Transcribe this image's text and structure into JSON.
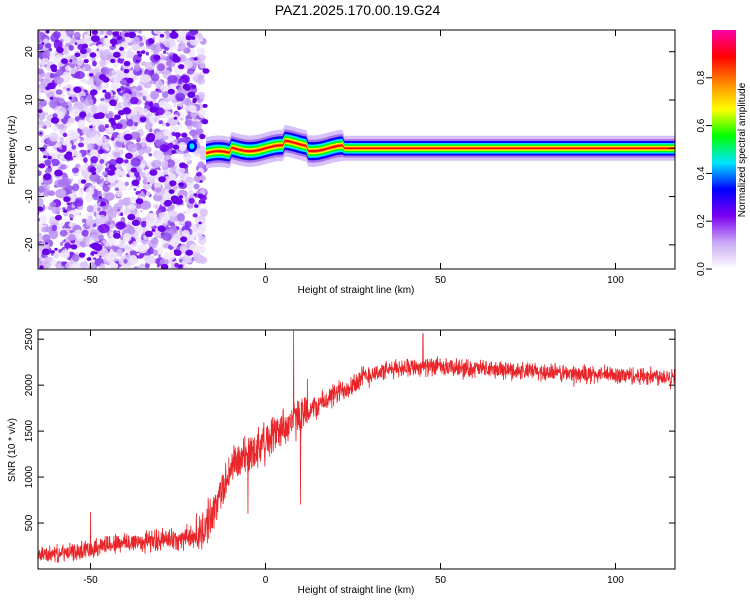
{
  "figure": {
    "title": "PAZ1.2025.170.00.19.G24"
  },
  "chart_data": [
    {
      "type": "heatmap",
      "title": "",
      "xlabel": "Height of straight line (km)",
      "ylabel": "Frequency (Hz)",
      "xlim": [
        -65,
        117
      ],
      "ylim": [
        -25,
        24.5
      ],
      "xticks": [
        -50,
        0,
        50,
        100
      ],
      "yticks": [
        -20,
        -10,
        0,
        10,
        20
      ],
      "noise_region_x": [
        -65,
        -17
      ],
      "tone_start_x": -17,
      "tone_frequency_hz": 0,
      "grid": false,
      "colorbar": {
        "label": "Normalized spectral amplitude",
        "range": [
          0,
          1
        ],
        "ticks": [
          0.0,
          0.2,
          0.4,
          0.6,
          0.8
        ],
        "tick_labels": [
          "0.0",
          "0.2",
          "0.4",
          "0.6",
          "0.8"
        ],
        "colors": [
          "#ffffff",
          "#c9a8f5",
          "#7c00f0",
          "#0000ff",
          "#00e5ff",
          "#00ff00",
          "#ffff00",
          "#ff8800",
          "#ff0000",
          "#ff00aa"
        ]
      }
    },
    {
      "type": "line",
      "title": "",
      "xlabel": "Height of straight line (km)",
      "ylabel": "SNR (10 * v/v)",
      "xlim": [
        -65,
        117
      ],
      "ylim": [
        0,
        2600
      ],
      "xticks": [
        -50,
        0,
        50,
        100
      ],
      "yticks": [
        500,
        1000,
        1500,
        2000,
        2500
      ],
      "grid": false,
      "color": "#e8262a",
      "trend": {
        "x": [
          -65,
          -55,
          -45,
          -35,
          -28,
          -22,
          -18,
          -14,
          -10,
          -5,
          0,
          5,
          10,
          15,
          20,
          25,
          30,
          35,
          40,
          45,
          50,
          60,
          70,
          80,
          90,
          100,
          110,
          117
        ],
        "y": [
          150,
          180,
          270,
          300,
          320,
          340,
          400,
          700,
          1100,
          1250,
          1400,
          1550,
          1650,
          1780,
          1900,
          2020,
          2120,
          2160,
          2200,
          2200,
          2190,
          2180,
          2160,
          2140,
          2120,
          2110,
          2100,
          2100
        ]
      },
      "spikes": [
        {
          "x": 8,
          "y": 2590
        },
        {
          "x": 45,
          "y": 2560
        },
        {
          "x": 10,
          "y": 700
        },
        {
          "x": -5,
          "y": 600
        },
        {
          "x": -50,
          "y": 620
        }
      ]
    }
  ]
}
